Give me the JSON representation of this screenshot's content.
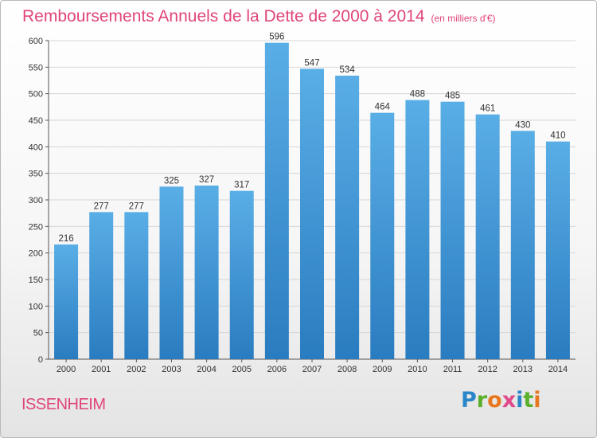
{
  "chart_data": {
    "type": "bar",
    "title": "Remboursements Annuels de la Dette de 2000 à 2014",
    "unit_note": "(en milliers d'€)",
    "categories": [
      "2000",
      "2001",
      "2002",
      "2003",
      "2004",
      "2005",
      "2006",
      "2007",
      "2008",
      "2009",
      "2010",
      "2011",
      "2012",
      "2013",
      "2014"
    ],
    "values": [
      216,
      277,
      277,
      325,
      327,
      317,
      596,
      547,
      534,
      464,
      488,
      485,
      461,
      430,
      410
    ],
    "value_labels": [
      "216",
      "277",
      "277",
      "325",
      "327",
      "317",
      "596",
      "547",
      "534",
      "464",
      "488",
      "485",
      "461",
      "430",
      "410"
    ],
    "ylim": [
      0,
      600
    ],
    "yticks": [
      "0",
      "50",
      "100",
      "150",
      "200",
      "250",
      "300",
      "350",
      "400",
      "450",
      "500",
      "550",
      "600"
    ],
    "grid": true,
    "bar_color_top": "#5aaee6",
    "bar_color_bottom": "#2a7cc0"
  },
  "footer": {
    "city": "ISSENHEIM",
    "brand_letters": [
      {
        "char": "P",
        "color": "#2a86c8"
      },
      {
        "char": "r",
        "color": "#5bb02b"
      },
      {
        "char": "o",
        "color": "#e8781f"
      },
      {
        "char": "x",
        "color": "#e04a8a"
      },
      {
        "char": "i",
        "color": "#2a86c8"
      },
      {
        "char": "t",
        "color": "#5bb02b"
      },
      {
        "char": "i",
        "color": "#e8781f"
      }
    ]
  },
  "colors": {
    "title": "#e0457b",
    "grid": "#d6d6d6",
    "axis": "#555555"
  }
}
